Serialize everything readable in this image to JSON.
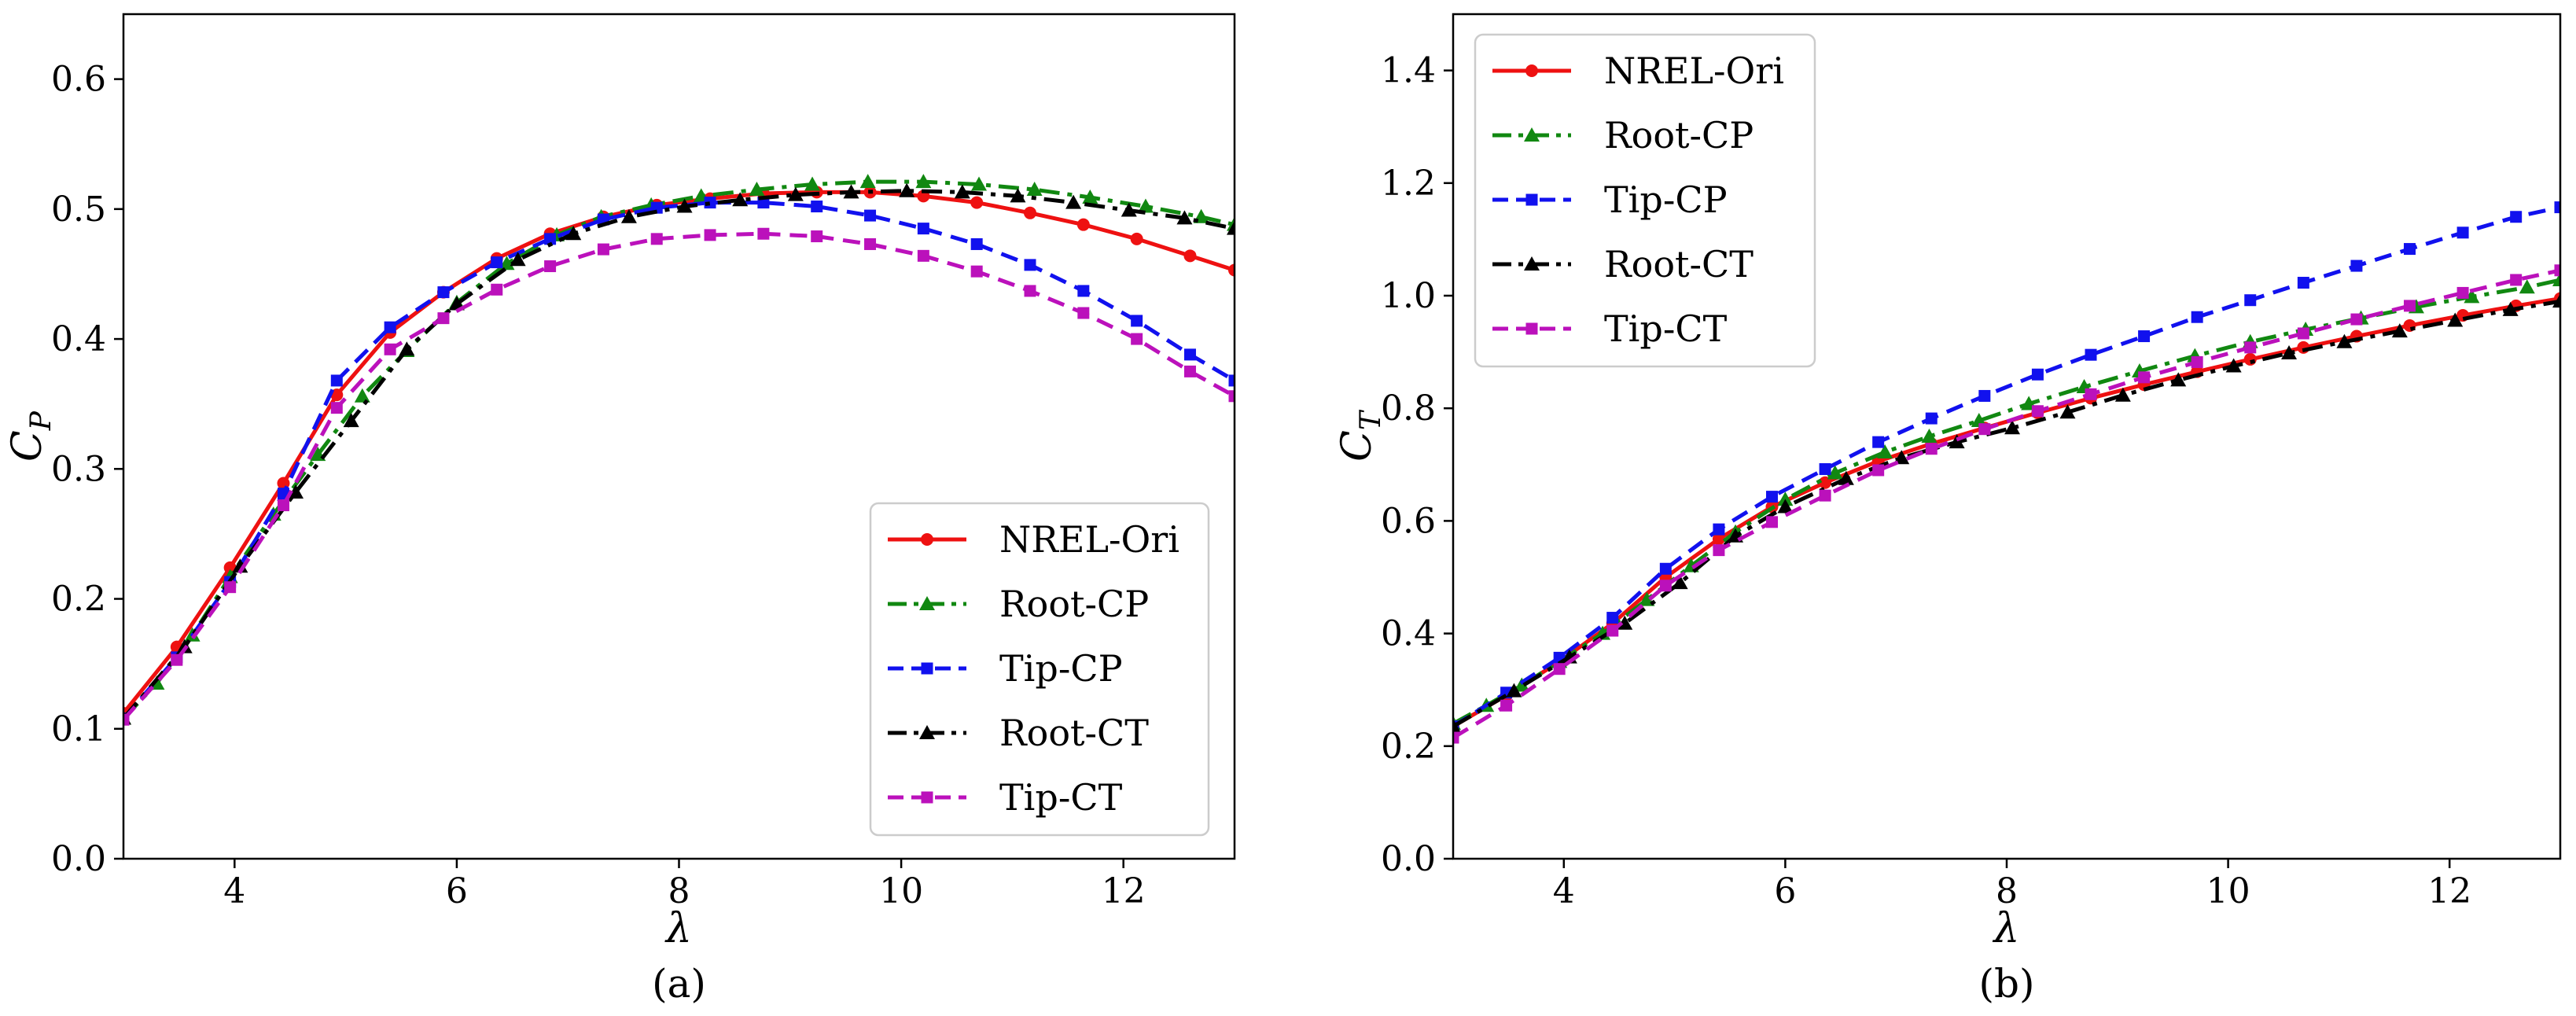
{
  "colors": {
    "NREL-Ori": "#ee1111",
    "Root-CP": "#118811",
    "Tip-CP": "#1111ee",
    "Root-CT": "#000000",
    "Tip-CT": "#bb11bb"
  },
  "chart_data": [
    {
      "type": "line",
      "panel": "a",
      "caption": "(a)",
      "xlabel": "λ",
      "ylabel_main": "C",
      "ylabel_sub": "P",
      "xlim": [
        3,
        13
      ],
      "ylim": [
        0,
        0.65
      ],
      "xticks": [
        4,
        6,
        8,
        10,
        12
      ],
      "yticks": [
        0.0,
        0.1,
        0.2,
        0.3,
        0.4,
        0.5,
        0.6
      ],
      "ytick_labels": [
        "0.0",
        "0.1",
        "0.2",
        "0.3",
        "0.4",
        "0.5",
        "0.6"
      ],
      "legend_position": "lower-right",
      "series": [
        {
          "name": "NREL-Ori",
          "marker": "circle",
          "dash": "solid",
          "x": [
            3,
            3.48,
            3.96,
            4.44,
            4.92,
            5.4,
            5.88,
            6.36,
            6.84,
            7.32,
            7.8,
            8.28,
            8.76,
            9.24,
            9.72,
            10.2,
            10.68,
            11.16,
            11.64,
            12.12,
            12.6,
            13
          ],
          "y": [
            0.112,
            0.163,
            0.224,
            0.289,
            0.357,
            0.405,
            0.436,
            0.462,
            0.481,
            0.494,
            0.503,
            0.508,
            0.512,
            0.513,
            0.513,
            0.51,
            0.505,
            0.497,
            0.488,
            0.477,
            0.464,
            0.453
          ]
        },
        {
          "name": "Root-CP",
          "marker": "triangle",
          "dash": "dashdot",
          "x": [
            3,
            3.3,
            3.62,
            3.96,
            4.35,
            4.75,
            5.15,
            5.55,
            6.0,
            6.45,
            6.9,
            7.3,
            7.75,
            8.2,
            8.7,
            9.2,
            9.7,
            10.2,
            10.7,
            11.2,
            11.7,
            12.2,
            12.7,
            13
          ],
          "y": [
            0.108,
            0.135,
            0.172,
            0.217,
            0.265,
            0.311,
            0.356,
            0.391,
            0.428,
            0.458,
            0.48,
            0.494,
            0.503,
            0.51,
            0.515,
            0.519,
            0.521,
            0.521,
            0.519,
            0.515,
            0.509,
            0.502,
            0.494,
            0.488
          ]
        },
        {
          "name": "Tip-CP",
          "marker": "square",
          "dash": "dashed",
          "x": [
            3,
            3.48,
            3.96,
            4.44,
            4.92,
            5.4,
            5.88,
            6.36,
            6.84,
            7.32,
            7.8,
            8.28,
            8.76,
            9.24,
            9.72,
            10.2,
            10.68,
            11.16,
            11.64,
            12.12,
            12.6,
            13
          ],
          "y": [
            0.108,
            0.155,
            0.213,
            0.281,
            0.368,
            0.409,
            0.436,
            0.459,
            0.477,
            0.492,
            0.501,
            0.505,
            0.505,
            0.502,
            0.495,
            0.485,
            0.473,
            0.457,
            0.437,
            0.414,
            0.388,
            0.368
          ]
        },
        {
          "name": "Root-CT",
          "marker": "triangle",
          "dash": "dashdot",
          "x": [
            3,
            3.55,
            4.05,
            4.55,
            5.05,
            5.55,
            6.0,
            6.55,
            7.05,
            7.55,
            8.05,
            8.55,
            9.05,
            9.55,
            10.05,
            10.55,
            11.05,
            11.55,
            12.05,
            12.55,
            13
          ],
          "y": [
            0.108,
            0.163,
            0.225,
            0.282,
            0.337,
            0.392,
            0.427,
            0.461,
            0.481,
            0.494,
            0.502,
            0.507,
            0.511,
            0.513,
            0.514,
            0.513,
            0.51,
            0.505,
            0.499,
            0.493,
            0.485
          ]
        },
        {
          "name": "Tip-CT",
          "marker": "square",
          "dash": "dashed",
          "x": [
            3,
            3.48,
            3.96,
            4.44,
            4.92,
            5.4,
            5.88,
            6.36,
            6.84,
            7.32,
            7.8,
            8.28,
            8.76,
            9.24,
            9.72,
            10.2,
            10.68,
            11.16,
            11.64,
            12.12,
            12.6,
            13
          ],
          "y": [
            0.107,
            0.153,
            0.209,
            0.272,
            0.347,
            0.392,
            0.416,
            0.438,
            0.456,
            0.469,
            0.477,
            0.48,
            0.481,
            0.479,
            0.473,
            0.464,
            0.452,
            0.437,
            0.42,
            0.4,
            0.375,
            0.356
          ]
        }
      ]
    },
    {
      "type": "line",
      "panel": "b",
      "caption": "(b)",
      "xlabel": "λ",
      "ylabel_main": "C",
      "ylabel_sub": "T",
      "xlim": [
        3,
        13
      ],
      "ylim": [
        0,
        1.5
      ],
      "xticks": [
        4,
        6,
        8,
        10,
        12
      ],
      "yticks": [
        0.0,
        0.2,
        0.4,
        0.6,
        0.8,
        1.0,
        1.2,
        1.4
      ],
      "ytick_labels": [
        "0.0",
        "0.2",
        "0.4",
        "0.6",
        "0.8",
        "1.0",
        "1.2",
        "1.4"
      ],
      "legend_position": "upper-left",
      "series": [
        {
          "name": "NREL-Ori",
          "marker": "circle",
          "dash": "solid",
          "x": [
            3,
            3.48,
            3.96,
            4.44,
            4.92,
            5.4,
            5.88,
            6.36,
            6.84,
            7.32,
            7.8,
            8.28,
            8.76,
            9.24,
            9.72,
            10.2,
            10.68,
            11.16,
            11.64,
            12.12,
            12.6,
            13
          ],
          "y": [
            0.235,
            0.29,
            0.35,
            0.418,
            0.5,
            0.568,
            0.625,
            0.668,
            0.706,
            0.737,
            0.765,
            0.792,
            0.818,
            0.842,
            0.865,
            0.887,
            0.908,
            0.928,
            0.947,
            0.965,
            0.982,
            0.995
          ]
        },
        {
          "name": "Root-CP",
          "marker": "triangle",
          "dash": "dashdot",
          "x": [
            3,
            3.3,
            3.62,
            3.96,
            4.35,
            4.75,
            5.15,
            5.55,
            6.0,
            6.45,
            6.9,
            7.3,
            7.75,
            8.2,
            8.7,
            9.2,
            9.7,
            10.2,
            10.7,
            11.2,
            11.7,
            12.2,
            12.7,
            13
          ],
          "y": [
            0.24,
            0.272,
            0.308,
            0.35,
            0.4,
            0.46,
            0.52,
            0.58,
            0.638,
            0.685,
            0.722,
            0.75,
            0.778,
            0.808,
            0.838,
            0.866,
            0.893,
            0.918,
            0.94,
            0.96,
            0.98,
            0.998,
            1.015,
            1.028
          ]
        },
        {
          "name": "Tip-CP",
          "marker": "square",
          "dash": "dashed",
          "x": [
            3,
            3.48,
            3.96,
            4.44,
            4.92,
            5.4,
            5.88,
            6.36,
            6.84,
            7.32,
            7.8,
            8.28,
            8.76,
            9.24,
            9.72,
            10.2,
            10.68,
            11.16,
            11.64,
            12.12,
            12.6,
            13
          ],
          "y": [
            0.235,
            0.295,
            0.357,
            0.428,
            0.515,
            0.585,
            0.643,
            0.692,
            0.74,
            0.782,
            0.822,
            0.86,
            0.895,
            0.928,
            0.962,
            0.992,
            1.023,
            1.053,
            1.083,
            1.112,
            1.14,
            1.157
          ]
        },
        {
          "name": "Root-CT",
          "marker": "triangle",
          "dash": "dashdot",
          "x": [
            3,
            3.55,
            4.05,
            4.55,
            5.05,
            5.55,
            6.0,
            6.55,
            7.05,
            7.55,
            8.05,
            8.55,
            9.05,
            9.55,
            10.05,
            10.55,
            11.05,
            11.55,
            12.05,
            12.55,
            13
          ],
          "y": [
            0.235,
            0.298,
            0.358,
            0.418,
            0.49,
            0.573,
            0.625,
            0.675,
            0.712,
            0.74,
            0.765,
            0.793,
            0.823,
            0.85,
            0.875,
            0.898,
            0.918,
            0.937,
            0.956,
            0.975,
            0.99
          ]
        },
        {
          "name": "Tip-CT",
          "marker": "square",
          "dash": "dashed",
          "x": [
            3,
            3.48,
            3.96,
            4.44,
            4.92,
            5.4,
            5.88,
            6.36,
            6.84,
            7.32,
            7.8,
            8.28,
            8.76,
            9.24,
            9.72,
            10.2,
            10.68,
            11.16,
            11.64,
            12.12,
            12.6,
            13
          ],
          "y": [
            0.215,
            0.272,
            0.337,
            0.405,
            0.485,
            0.548,
            0.598,
            0.645,
            0.69,
            0.728,
            0.763,
            0.795,
            0.825,
            0.855,
            0.882,
            0.908,
            0.933,
            0.958,
            0.982,
            1.005,
            1.028,
            1.045
          ]
        }
      ]
    }
  ]
}
